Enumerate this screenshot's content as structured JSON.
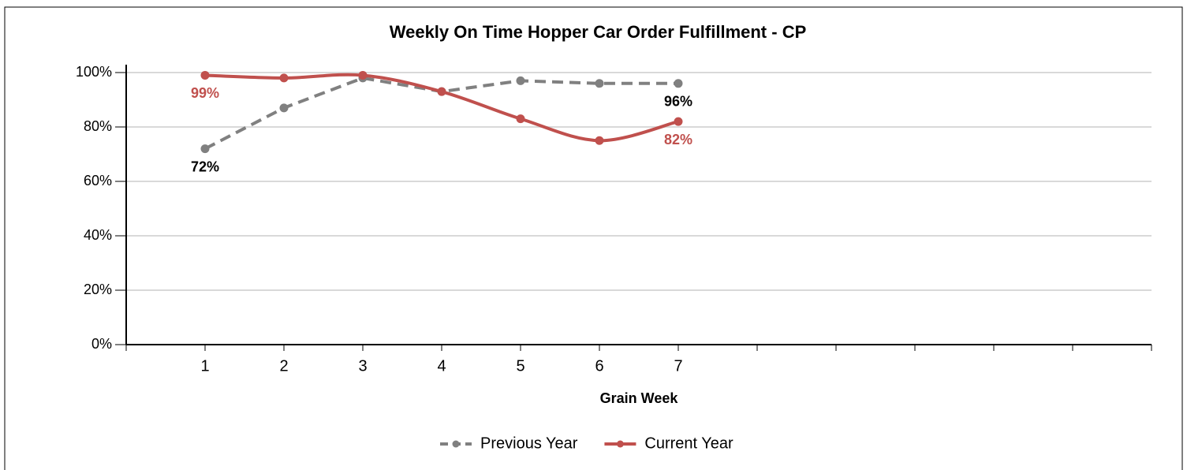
{
  "chart_data": {
    "type": "line",
    "title": "Weekly On Time Hopper Car Order Fulfillment - CP",
    "x_label": "Grain Week",
    "categories": [
      "1",
      "2",
      "3",
      "4",
      "5",
      "6",
      "7",
      null,
      null,
      null,
      null,
      null,
      null
    ],
    "series": [
      {
        "name": "Previous Year",
        "color": "#808080",
        "label_color": "#000000",
        "dashed": true,
        "smooth": false,
        "values": [
          72,
          87,
          98,
          93,
          97,
          96,
          96,
          null,
          null,
          null,
          null,
          null,
          null
        ],
        "value_labels": [
          "72%",
          null,
          null,
          null,
          null,
          null,
          "96%",
          null,
          null,
          null,
          null,
          null,
          null
        ]
      },
      {
        "name": "Current Year",
        "color": "#c0504d",
        "label_color": "#c0504d",
        "dashed": false,
        "smooth": true,
        "values": [
          99,
          98,
          99,
          93,
          83,
          75,
          82,
          null,
          null,
          null,
          null,
          null,
          null
        ],
        "value_labels": [
          "99%",
          null,
          null,
          null,
          null,
          null,
          "82%",
          null,
          null,
          null,
          null,
          null,
          null
        ]
      }
    ],
    "ylim": [
      0,
      100
    ],
    "yticks": [
      {
        "value": 0,
        "label": "0%"
      },
      {
        "value": 20,
        "label": "20%"
      },
      {
        "value": 40,
        "label": "40%"
      },
      {
        "value": 60,
        "label": "60%"
      },
      {
        "value": 80,
        "label": "80%"
      },
      {
        "value": 100,
        "label": "100%"
      }
    ],
    "grid": true,
    "legend": "bottom"
  }
}
